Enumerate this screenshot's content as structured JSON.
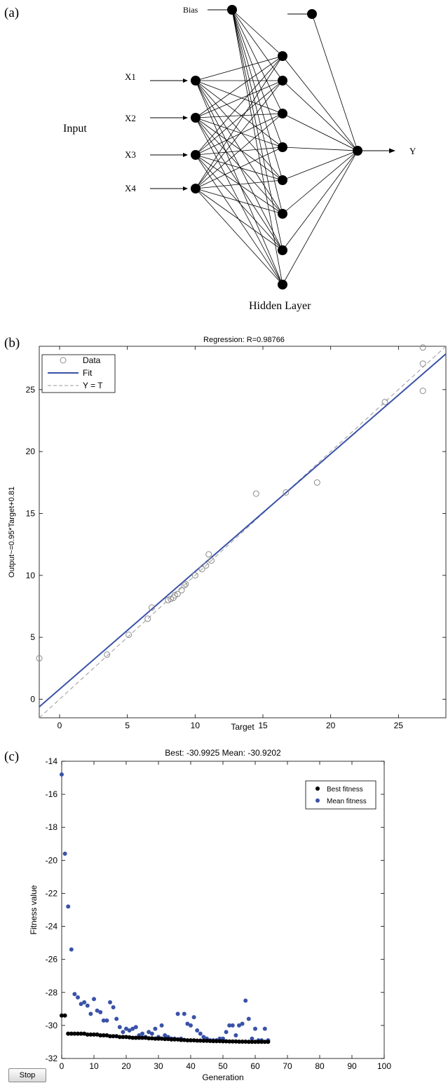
{
  "panels": {
    "a": {
      "label": "(a)"
    },
    "b": {
      "label": "(b)"
    },
    "c": {
      "label": "(c)"
    }
  },
  "network": {
    "input_label": "Input",
    "bias_label": "Bias",
    "inputs": [
      "X1",
      "X2",
      "X3",
      "X4"
    ],
    "hidden_label": "Hidden Layer",
    "output_label": "Y",
    "hidden_neurons": 8
  },
  "controls": {
    "stop_label": "Stop"
  },
  "chart_data": [
    {
      "type": "scatter",
      "title": "Regression: R=0.98766",
      "xlabel": "Target",
      "ylabel": "Output~=0.95*Target+0.81",
      "xlim": [
        -1.5,
        28.5
      ],
      "ylim": [
        -1.5,
        28.5
      ],
      "xticks": [
        0,
        5,
        10,
        15,
        20,
        25
      ],
      "yticks": [
        0,
        5,
        10,
        15,
        20,
        25
      ],
      "grid": false,
      "legend": {
        "position": "top-left",
        "entries": [
          "Data",
          "Fit",
          "Y = T"
        ]
      },
      "fit": {
        "slope": 0.95,
        "intercept": 0.81
      },
      "colors": {
        "fit": "#3a52a8",
        "data": "#8c8c8c",
        "identity": "#9a9a9a"
      },
      "series": [
        {
          "name": "Data",
          "points": [
            [
              -1.5,
              3.3
            ],
            [
              3.5,
              3.6
            ],
            [
              5.1,
              5.2
            ],
            [
              6.5,
              6.5
            ],
            [
              6.8,
              7.4
            ],
            [
              8.0,
              8.0
            ],
            [
              8.2,
              8.1
            ],
            [
              8.4,
              8.2
            ],
            [
              8.5,
              8.4
            ],
            [
              8.7,
              8.5
            ],
            [
              9.0,
              8.8
            ],
            [
              9.2,
              9.2
            ],
            [
              9.3,
              9.3
            ],
            [
              10.0,
              10.0
            ],
            [
              10.5,
              10.5
            ],
            [
              10.8,
              10.8
            ],
            [
              11.0,
              11.7
            ],
            [
              11.2,
              11.2
            ],
            [
              14.5,
              16.6
            ],
            [
              16.7,
              16.7
            ],
            [
              19.0,
              17.5
            ],
            [
              24.0,
              24.0
            ],
            [
              26.8,
              28.4
            ],
            [
              26.8,
              27.1
            ],
            [
              26.8,
              24.9
            ]
          ]
        }
      ]
    },
    {
      "type": "scatter",
      "title": "Best: -30.9925 Mean: -30.9202",
      "xlabel": "Generation",
      "ylabel": "Fitness value",
      "xlim": [
        0,
        100
      ],
      "ylim": [
        -32,
        -14
      ],
      "xticks": [
        0,
        10,
        20,
        30,
        40,
        50,
        60,
        70,
        80,
        90,
        100
      ],
      "yticks": [
        -14,
        -16,
        -18,
        -20,
        -22,
        -24,
        -26,
        -28,
        -30,
        -32
      ],
      "grid": false,
      "legend": {
        "position": "top-right",
        "entries": [
          "Best fitness",
          "Mean fitness"
        ]
      },
      "series": [
        {
          "name": "Best fitness",
          "color": "#000000",
          "points": [
            [
              0,
              -29.4
            ],
            [
              1,
              -29.4
            ],
            [
              2,
              -30.5
            ],
            [
              3,
              -30.5
            ],
            [
              4,
              -30.5
            ],
            [
              5,
              -30.5
            ],
            [
              6,
              -30.5
            ],
            [
              7,
              -30.5
            ],
            [
              8,
              -30.55
            ],
            [
              9,
              -30.55
            ],
            [
              10,
              -30.55
            ],
            [
              11,
              -30.55
            ],
            [
              12,
              -30.6
            ],
            [
              13,
              -30.6
            ],
            [
              14,
              -30.6
            ],
            [
              15,
              -30.65
            ],
            [
              16,
              -30.65
            ],
            [
              17,
              -30.65
            ],
            [
              18,
              -30.7
            ],
            [
              19,
              -30.7
            ],
            [
              20,
              -30.7
            ],
            [
              21,
              -30.72
            ],
            [
              22,
              -30.75
            ],
            [
              23,
              -30.75
            ],
            [
              24,
              -30.75
            ],
            [
              25,
              -30.75
            ],
            [
              26,
              -30.75
            ],
            [
              27,
              -30.78
            ],
            [
              28,
              -30.78
            ],
            [
              29,
              -30.8
            ],
            [
              30,
              -30.8
            ],
            [
              31,
              -30.8
            ],
            [
              32,
              -30.82
            ],
            [
              33,
              -30.82
            ],
            [
              34,
              -30.85
            ],
            [
              35,
              -30.85
            ],
            [
              36,
              -30.85
            ],
            [
              37,
              -30.88
            ],
            [
              38,
              -30.88
            ],
            [
              39,
              -30.9
            ],
            [
              40,
              -30.9
            ],
            [
              41,
              -30.9
            ],
            [
              42,
              -30.92
            ],
            [
              43,
              -30.92
            ],
            [
              44,
              -30.93
            ],
            [
              45,
              -30.93
            ],
            [
              46,
              -30.94
            ],
            [
              47,
              -30.95
            ],
            [
              48,
              -30.95
            ],
            [
              49,
              -30.95
            ],
            [
              50,
              -30.96
            ],
            [
              51,
              -30.96
            ],
            [
              52,
              -30.97
            ],
            [
              53,
              -30.97
            ],
            [
              54,
              -30.97
            ],
            [
              55,
              -30.98
            ],
            [
              56,
              -30.98
            ],
            [
              57,
              -30.98
            ],
            [
              58,
              -30.99
            ],
            [
              59,
              -30.99
            ],
            [
              60,
              -30.99
            ],
            [
              61,
              -30.99
            ],
            [
              62,
              -30.99
            ],
            [
              63,
              -30.99
            ],
            [
              64,
              -30.99
            ]
          ]
        },
        {
          "name": "Mean fitness",
          "color": "#3a52a8",
          "points": [
            [
              0,
              -14.8
            ],
            [
              1,
              -19.6
            ],
            [
              2,
              -22.8
            ],
            [
              3,
              -25.4
            ],
            [
              4,
              -28.1
            ],
            [
              5,
              -28.3
            ],
            [
              6,
              -28.7
            ],
            [
              7,
              -28.6
            ],
            [
              8,
              -28.8
            ],
            [
              9,
              -29.3
            ],
            [
              10,
              -28.4
            ],
            [
              11,
              -29.1
            ],
            [
              12,
              -29.2
            ],
            [
              13,
              -29.7
            ],
            [
              14,
              -29.7
            ],
            [
              15,
              -28.6
            ],
            [
              16,
              -28.9
            ],
            [
              17,
              -29.6
            ],
            [
              18,
              -30.1
            ],
            [
              19,
              -30.4
            ],
            [
              20,
              -30.2
            ],
            [
              21,
              -30.3
            ],
            [
              22,
              -30.2
            ],
            [
              23,
              -30.1
            ],
            [
              24,
              -30.6
            ],
            [
              25,
              -30.5
            ],
            [
              26,
              -30.7
            ],
            [
              27,
              -30.4
            ],
            [
              28,
              -30.5
            ],
            [
              29,
              -30.2
            ],
            [
              30,
              -30.7
            ],
            [
              31,
              -30.0
            ],
            [
              32,
              -30.6
            ],
            [
              33,
              -30.7
            ],
            [
              34,
              -30.8
            ],
            [
              35,
              -30.8
            ],
            [
              36,
              -29.3
            ],
            [
              37,
              -30.8
            ],
            [
              38,
              -29.3
            ],
            [
              39,
              -29.9
            ],
            [
              40,
              -30.0
            ],
            [
              41,
              -29.5
            ],
            [
              42,
              -30.3
            ],
            [
              43,
              -30.5
            ],
            [
              44,
              -30.7
            ],
            [
              45,
              -30.8
            ],
            [
              46,
              -30.9
            ],
            [
              47,
              -30.9
            ],
            [
              48,
              -30.9
            ],
            [
              49,
              -30.8
            ],
            [
              50,
              -30.8
            ],
            [
              51,
              -30.4
            ],
            [
              52,
              -30.0
            ],
            [
              53,
              -30.0
            ],
            [
              54,
              -30.6
            ],
            [
              55,
              -30.0
            ],
            [
              56,
              -29.9
            ],
            [
              57,
              -28.5
            ],
            [
              58,
              -29.6
            ],
            [
              59,
              -30.8
            ],
            [
              60,
              -30.2
            ],
            [
              61,
              -30.9
            ],
            [
              62,
              -30.9
            ],
            [
              63,
              -30.2
            ],
            [
              64,
              -30.9
            ]
          ]
        }
      ]
    }
  ]
}
